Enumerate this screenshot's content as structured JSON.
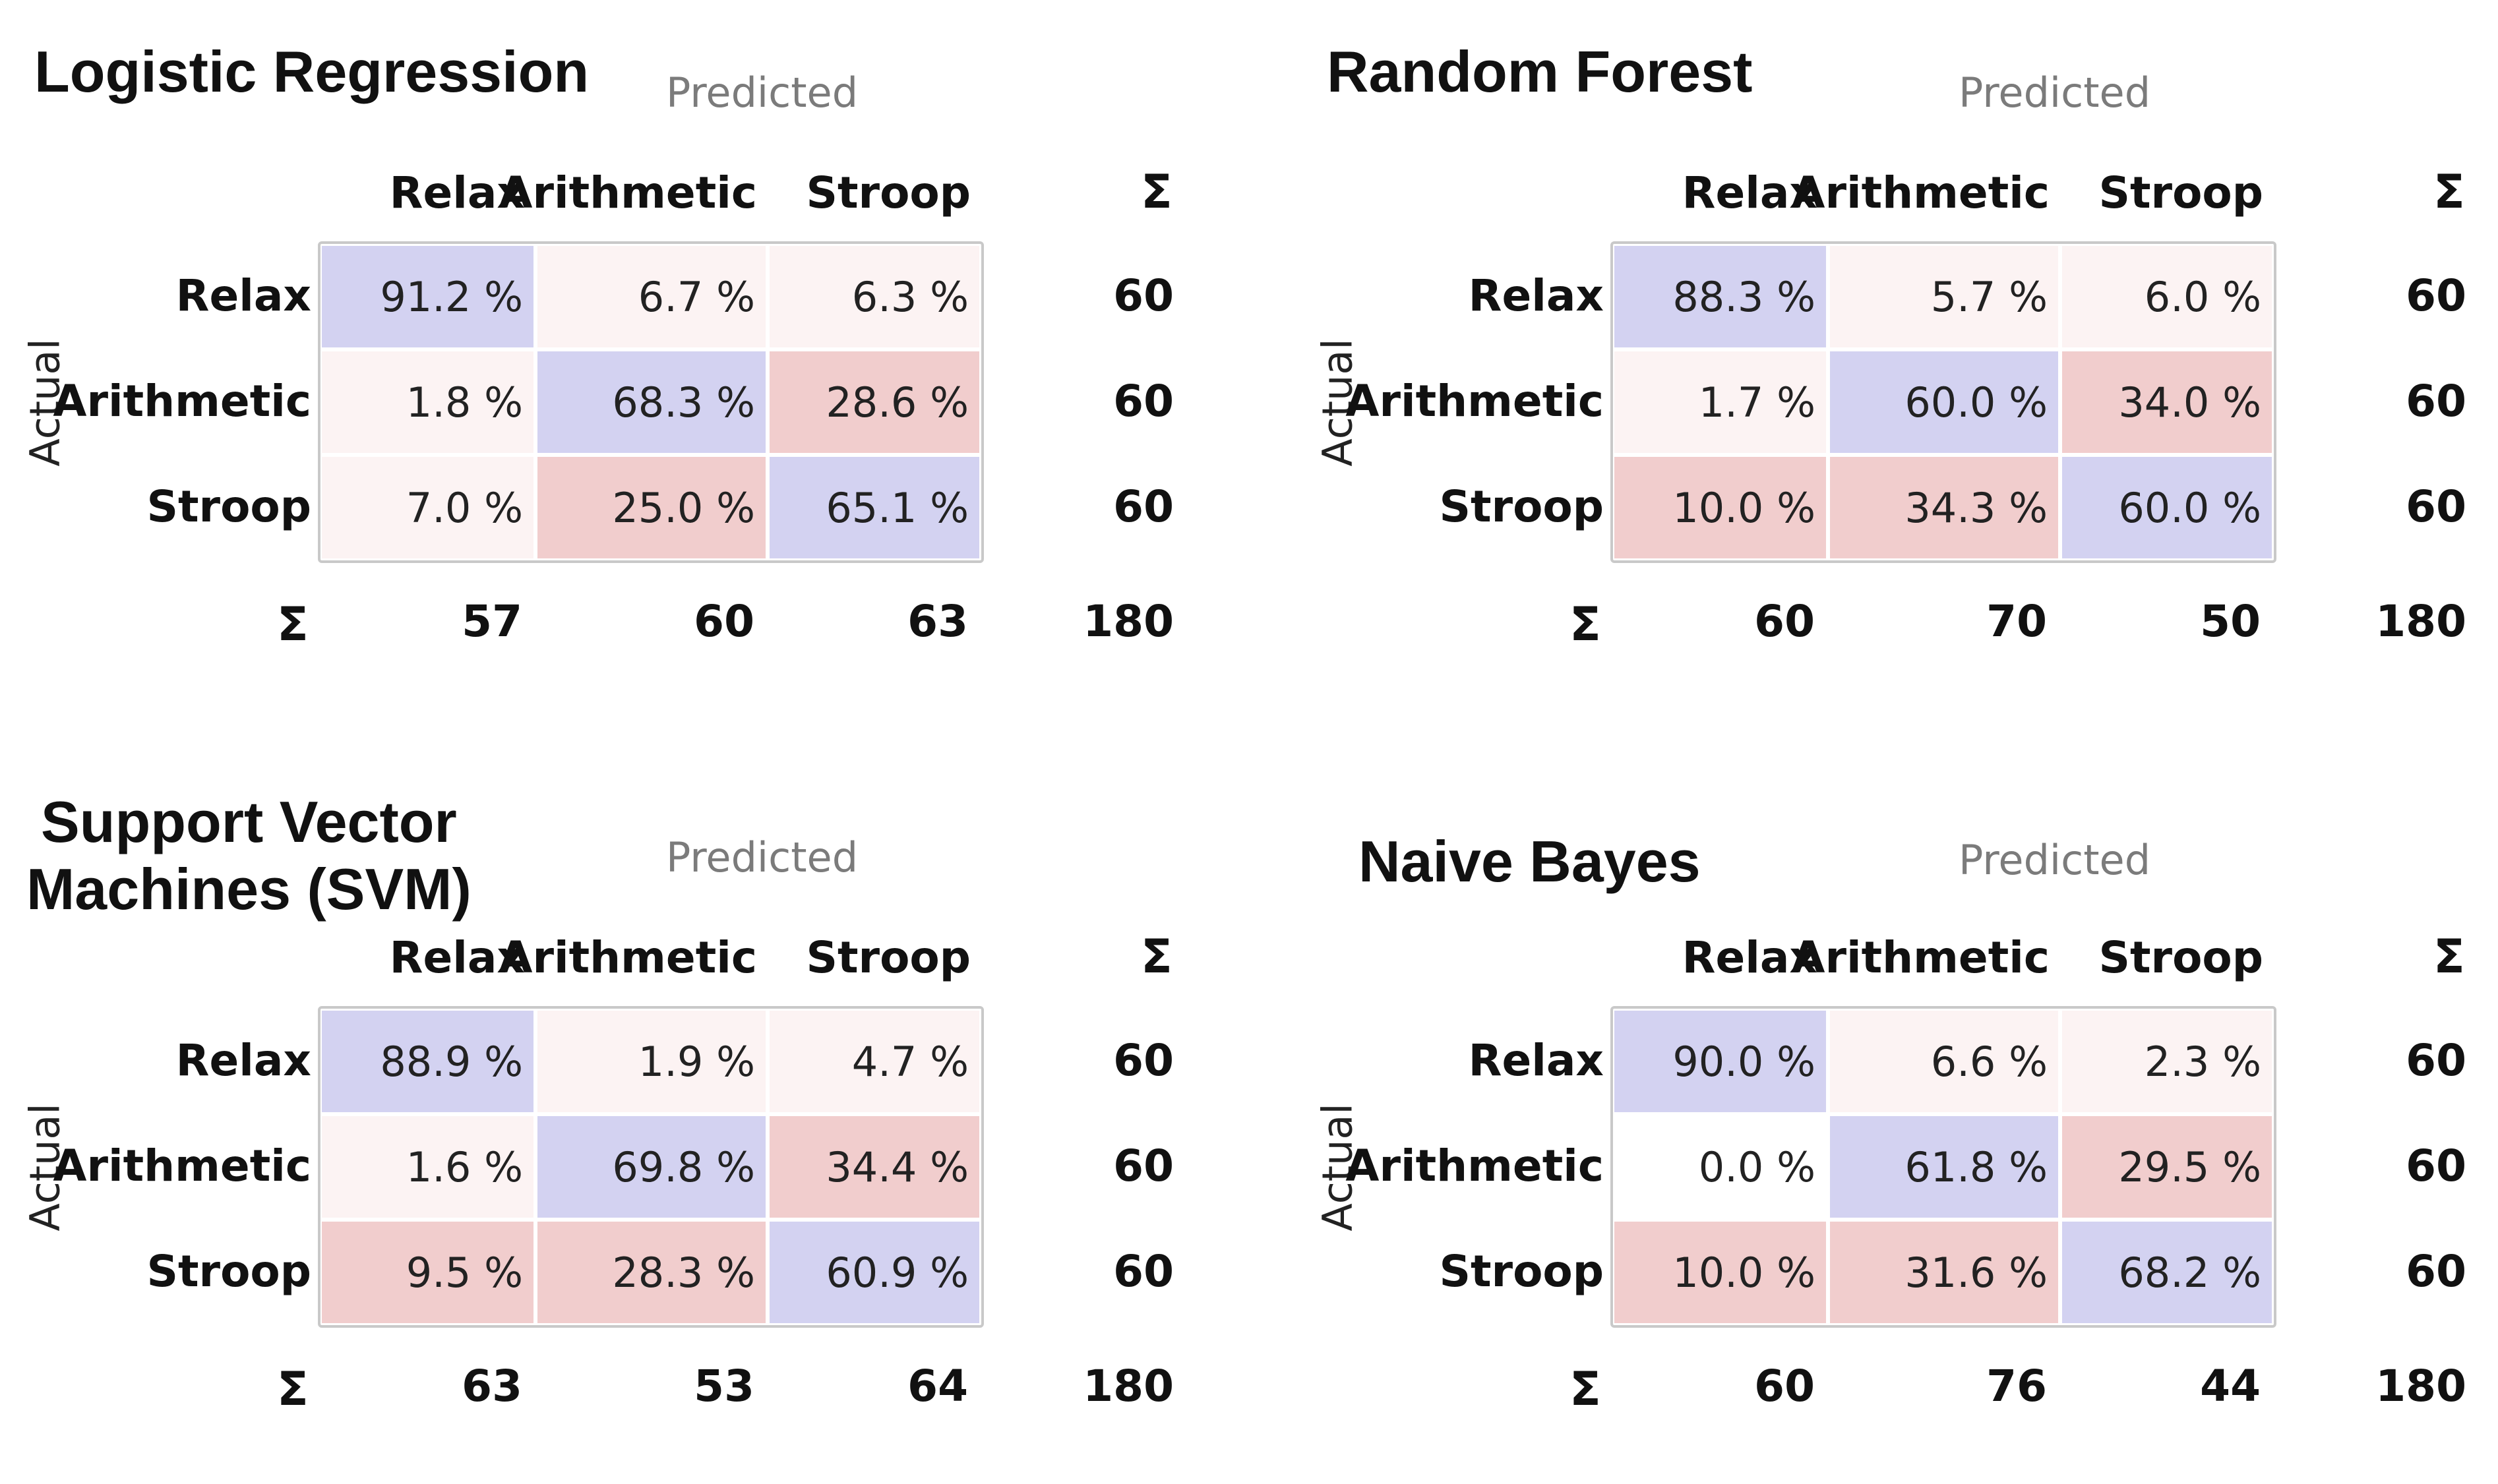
{
  "chart_data": [
    {
      "type": "heatmap",
      "title": "Logistic Regression",
      "xlabel": "Predicted",
      "ylabel": "Actual",
      "categories": [
        "Relax",
        "Arithmetic",
        "Stroop"
      ],
      "values": [
        [
          "91.2 %",
          "6.7 %",
          "6.3 %"
        ],
        [
          "1.8 %",
          "68.3 %",
          "28.6 %"
        ],
        [
          "7.0 %",
          "25.0 %",
          "65.1 %"
        ]
      ],
      "percent": [
        [
          91.2,
          6.7,
          6.3
        ],
        [
          1.8,
          68.3,
          28.6
        ],
        [
          7.0,
          25.0,
          65.1
        ]
      ],
      "sum_symbol": "Σ",
      "row_sums": [
        "60",
        "60",
        "60"
      ],
      "col_sums": [
        "57",
        "60",
        "63"
      ],
      "total": "180"
    },
    {
      "type": "heatmap",
      "title": "Random Forest",
      "xlabel": "Predicted",
      "ylabel": "Actual",
      "categories": [
        "Relax",
        "Arithmetic",
        "Stroop"
      ],
      "values": [
        [
          "88.3 %",
          "5.7 %",
          "6.0 %"
        ],
        [
          "1.7 %",
          "60.0 %",
          "34.0 %"
        ],
        [
          "10.0 %",
          "34.3 %",
          "60.0 %"
        ]
      ],
      "percent": [
        [
          88.3,
          5.7,
          6.0
        ],
        [
          1.7,
          60.0,
          34.0
        ],
        [
          10.0,
          34.3,
          60.0
        ]
      ],
      "sum_symbol": "Σ",
      "row_sums": [
        "60",
        "60",
        "60"
      ],
      "col_sums": [
        "60",
        "70",
        "50"
      ],
      "total": "180"
    },
    {
      "type": "heatmap",
      "title": "Support Vector\nMachines (SVM)",
      "xlabel": "Predicted",
      "ylabel": "Actual",
      "categories": [
        "Relax",
        "Arithmetic",
        "Stroop"
      ],
      "values": [
        [
          "88.9 %",
          "1.9 %",
          "4.7 %"
        ],
        [
          "1.6 %",
          "69.8 %",
          "34.4 %"
        ],
        [
          "9.5 %",
          "28.3 %",
          "60.9 %"
        ]
      ],
      "percent": [
        [
          88.9,
          1.9,
          4.7
        ],
        [
          1.6,
          69.8,
          34.4
        ],
        [
          9.5,
          28.3,
          60.9
        ]
      ],
      "sum_symbol": "Σ",
      "row_sums": [
        "60",
        "60",
        "60"
      ],
      "col_sums": [
        "63",
        "53",
        "64"
      ],
      "total": "180"
    },
    {
      "type": "heatmap",
      "title": "Naive Bayes",
      "xlabel": "Predicted",
      "ylabel": "Actual",
      "categories": [
        "Relax",
        "Arithmetic",
        "Stroop"
      ],
      "values": [
        [
          "90.0 %",
          "6.6 %",
          "2.3 %"
        ],
        [
          "0.0 %",
          "61.8 %",
          "29.5 %"
        ],
        [
          "10.0 %",
          "31.6 %",
          "68.2 %"
        ]
      ],
      "percent": [
        [
          90.0,
          6.6,
          2.3
        ],
        [
          0.0,
          61.8,
          29.5
        ],
        [
          10.0,
          31.6,
          68.2
        ]
      ],
      "sum_symbol": "Σ",
      "row_sums": [
        "60",
        "60",
        "60"
      ],
      "col_sums": [
        "60",
        "76",
        "44"
      ],
      "total": "180"
    }
  ],
  "colors": {
    "diagonal": "#d3d2f1",
    "off_diagonal_high": "#f1cdcd",
    "off_diagonal_low": "#fcf3f3",
    "off_diagonal_zero": "#ffffff",
    "matrix_border": "#c9c9c9"
  }
}
